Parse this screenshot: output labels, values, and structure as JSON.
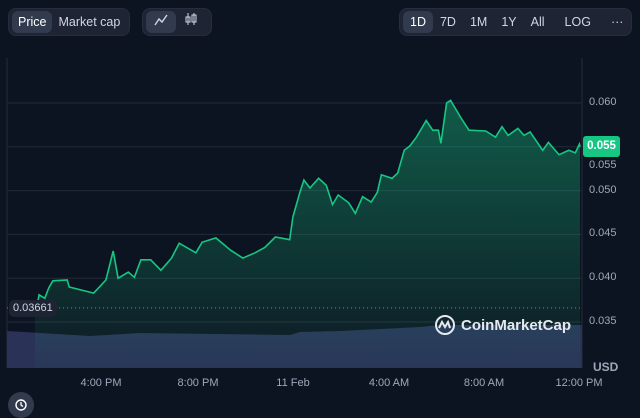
{
  "toolbar": {
    "metric_tabs": [
      {
        "label": "Price",
        "active": true
      },
      {
        "label": "Market cap",
        "active": false
      }
    ],
    "chart_type_buttons": [
      {
        "icon": "line-chart-icon",
        "active": true
      },
      {
        "icon": "candlestick-icon",
        "active": false
      }
    ],
    "ranges": [
      {
        "label": "1D",
        "active": true
      },
      {
        "label": "7D"
      },
      {
        "label": "1M"
      },
      {
        "label": "1Y"
      },
      {
        "label": "All"
      }
    ],
    "log_label": "LOG",
    "more_label": "···"
  },
  "current_price_label": "0.055",
  "reference_price_label": "0.03661",
  "currency_label": "USD",
  "brand": "CoinMarketCap",
  "colors": {
    "background": "#0d1421",
    "line": "#16c784",
    "volume": "#2a3357",
    "badge": "#16c784",
    "grid": "#222a3a"
  },
  "chart_data": {
    "type": "area",
    "title": "",
    "ylabel": "",
    "xlabel": "",
    "ylim": [
      0.035,
      0.0645
    ],
    "yticks": [
      "0.035",
      "0.040",
      "0.045",
      "0.050",
      "0.055",
      "0.060"
    ],
    "xticks": [
      "4:00 PM",
      "8:00 PM",
      "11 Feb",
      "4:00 AM",
      "8:00 AM",
      "12:00 PM"
    ],
    "grid": true,
    "reference_value": 0.03661,
    "current_value": 0.055,
    "points": [
      [
        "10 Feb 13:22",
        0.0366
      ],
      [
        "10 Feb 13:28",
        0.0381
      ],
      [
        "10 Feb 13:42",
        0.0377
      ],
      [
        "10 Feb 13:52",
        0.0389
      ],
      [
        "10 Feb 14:02",
        0.0397
      ],
      [
        "10 Feb 14:37",
        0.0398
      ],
      [
        "10 Feb 14:42",
        0.039
      ],
      [
        "10 Feb 15:42",
        0.0383
      ],
      [
        "10 Feb 16:12",
        0.0398
      ],
      [
        "10 Feb 16:30",
        0.0431
      ],
      [
        "10 Feb 16:42",
        0.04
      ],
      [
        "10 Feb 17:07",
        0.0407
      ],
      [
        "10 Feb 17:22",
        0.0401
      ],
      [
        "10 Feb 17:38",
        0.0421
      ],
      [
        "10 Feb 18:02",
        0.0421
      ],
      [
        "10 Feb 18:27",
        0.0409
      ],
      [
        "10 Feb 18:53",
        0.0423
      ],
      [
        "10 Feb 19:12",
        0.044
      ],
      [
        "10 Feb 19:53",
        0.0429
      ],
      [
        "10 Feb 20:08",
        0.0441
      ],
      [
        "10 Feb 20:42",
        0.0446
      ],
      [
        "10 Feb 21:18",
        0.0432
      ],
      [
        "10 Feb 21:48",
        0.0423
      ],
      [
        "10 Feb 22:18",
        0.0429
      ],
      [
        "10 Feb 22:42",
        0.0435
      ],
      [
        "10 Feb 23:08",
        0.0447
      ],
      [
        "10 Feb 23:43",
        0.0444
      ],
      [
        "10 Feb 23:51",
        0.047
      ],
      [
        "11 Feb 00:08",
        0.0498
      ],
      [
        "11 Feb 00:18",
        0.0512
      ],
      [
        "11 Feb 00:33",
        0.0503
      ],
      [
        "11 Feb 00:54",
        0.0514
      ],
      [
        "11 Feb 01:13",
        0.0506
      ],
      [
        "11 Feb 01:28",
        0.0484
      ],
      [
        "11 Feb 01:42",
        0.0495
      ],
      [
        "11 Feb 02:08",
        0.0486
      ],
      [
        "11 Feb 02:24",
        0.0474
      ],
      [
        "11 Feb 02:42",
        0.0493
      ],
      [
        "11 Feb 03:03",
        0.0487
      ],
      [
        "11 Feb 03:18",
        0.0498
      ],
      [
        "11 Feb 03:28",
        0.0518
      ],
      [
        "11 Feb 03:54",
        0.0514
      ],
      [
        "11 Feb 04:08",
        0.052
      ],
      [
        "11 Feb 04:24",
        0.0546
      ],
      [
        "11 Feb 04:38",
        0.0551
      ],
      [
        "11 Feb 04:54",
        0.0561
      ],
      [
        "11 Feb 05:18",
        0.058
      ],
      [
        "11 Feb 05:34",
        0.0569
      ],
      [
        "11 Feb 05:48",
        0.0569
      ],
      [
        "11 Feb 05:54",
        0.0554
      ],
      [
        "11 Feb 06:08",
        0.06
      ],
      [
        "11 Feb 06:18",
        0.0603
      ],
      [
        "11 Feb 06:42",
        0.0584
      ],
      [
        "11 Feb 07:03",
        0.0569
      ],
      [
        "11 Feb 07:44",
        0.0568
      ],
      [
        "11 Feb 08:08",
        0.0561
      ],
      [
        "11 Feb 08:24",
        0.0573
      ],
      [
        "11 Feb 08:39",
        0.0563
      ],
      [
        "11 Feb 09:03",
        0.0571
      ],
      [
        "11 Feb 09:18",
        0.0563
      ],
      [
        "11 Feb 09:33",
        0.0567
      ],
      [
        "11 Feb 10:04",
        0.0546
      ],
      [
        "11 Feb 10:18",
        0.0555
      ],
      [
        "11 Feb 10:44",
        0.0541
      ],
      [
        "11 Feb 11:08",
        0.0546
      ],
      [
        "11 Feb 11:24",
        0.0543
      ],
      [
        "11 Feb 11:34",
        0.0553
      ]
    ]
  }
}
